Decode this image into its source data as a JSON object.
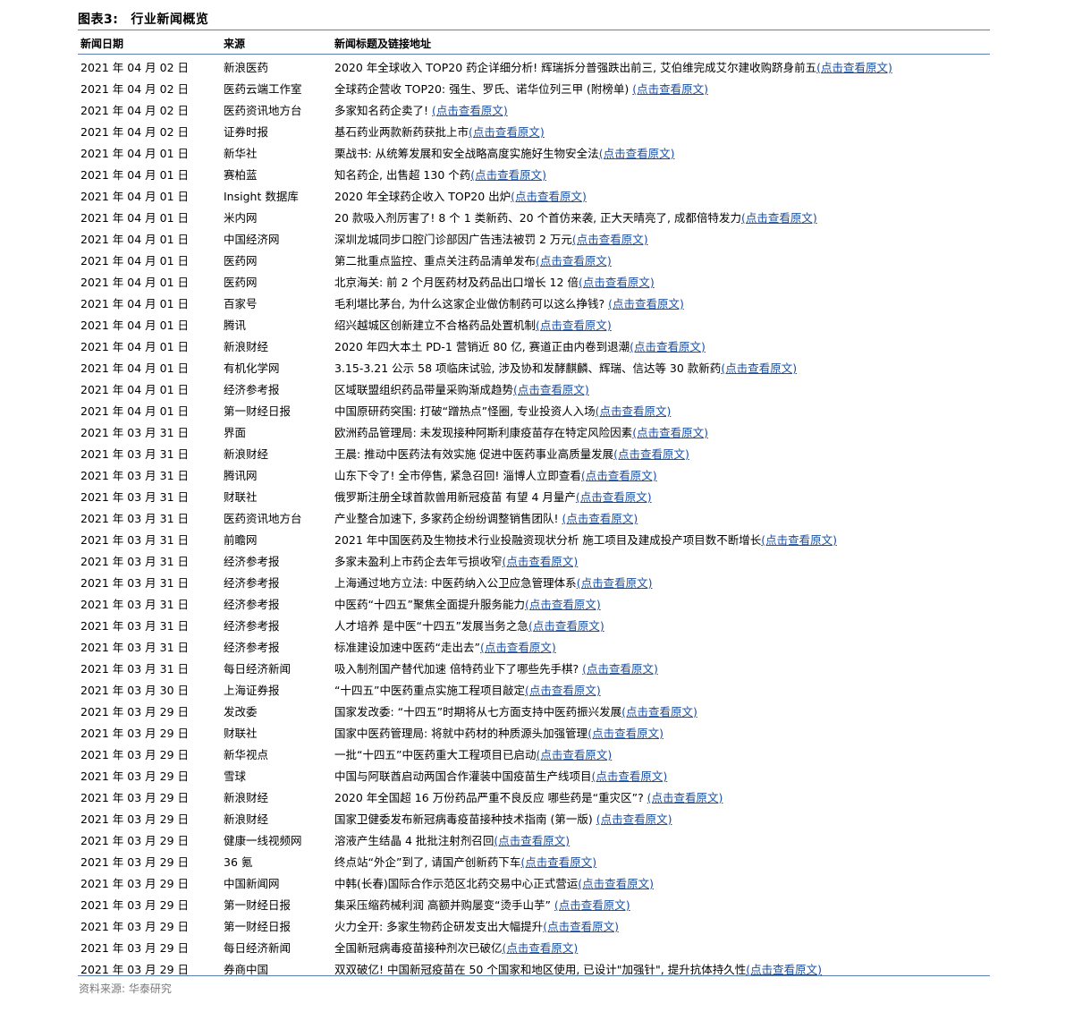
{
  "figure": {
    "label": "图表3:",
    "title": "行业新闻概览"
  },
  "columns": {
    "date": "新闻日期",
    "source": "来源",
    "title": "新闻标题及链接地址"
  },
  "link_text": "(点击查看原文)",
  "rows": [
    {
      "date": "2021 年 04 月 02 日",
      "source": "新浪医药",
      "title": "2020 年全球收入 TOP20 药企详细分析! 辉瑞拆分普强跌出前三, 艾伯维完成艾尔建收购跻身前五"
    },
    {
      "date": "2021 年 04 月 02 日",
      "source": "医药云端工作室",
      "title": "全球药企营收 TOP20: 强生、罗氏、诺华位列三甲 (附榜单) "
    },
    {
      "date": "2021 年 04 月 02 日",
      "source": "医药资讯地方台",
      "title": "多家知名药企卖了! "
    },
    {
      "date": "2021 年 04 月 02 日",
      "source": "证券时报",
      "title": "基石药业两款新药获批上市"
    },
    {
      "date": "2021 年 04 月 01 日",
      "source": "新华社",
      "title": "栗战书: 从统筹发展和安全战略高度实施好生物安全法"
    },
    {
      "date": "2021 年 04 月 01 日",
      "source": "赛柏蓝",
      "title": "知名药企, 出售超 130 个药"
    },
    {
      "date": "2021 年 04 月 01 日",
      "source": "Insight 数据库",
      "title": "2020 年全球药企收入 TOP20 出炉"
    },
    {
      "date": "2021 年 04 月 01 日",
      "source": "米内网",
      "title": "20 款吸入剂厉害了! 8 个 1 类新药、20 个首仿来袭, 正大天晴亮了, 成都倍特发力"
    },
    {
      "date": "2021 年 04 月 01 日",
      "source": "中国经济网",
      "title": "深圳龙城同步口腔门诊部因广告违法被罚 2 万元"
    },
    {
      "date": "2021 年 04 月 01 日",
      "source": "医药网",
      "title": "第二批重点监控、重点关注药品清单发布"
    },
    {
      "date": "2021 年 04 月 01 日",
      "source": "医药网",
      "title": "北京海关: 前 2 个月医药材及药品出口增长 12 倍"
    },
    {
      "date": "2021 年 04 月 01 日",
      "source": "百家号",
      "title": "毛利堪比茅台, 为什么这家企业做仿制药可以这么挣钱? "
    },
    {
      "date": "2021 年 04 月 01 日",
      "source": "腾讯",
      "title": "绍兴越城区创新建立不合格药品处置机制"
    },
    {
      "date": "2021 年 04 月 01 日",
      "source": "新浪财经",
      "title": "2020 年四大本土 PD-1 营销近 80 亿, 赛道正由内卷到退潮"
    },
    {
      "date": "2021 年 04 月 01 日",
      "source": "有机化学网",
      "title": "3.15-3.21 公示 58 项临床试验, 涉及协和发酵麒麟、辉瑞、信达等 30 款新药"
    },
    {
      "date": "2021 年 04 月 01 日",
      "source": "经济参考报",
      "title": "区域联盟组织药品带量采购渐成趋势"
    },
    {
      "date": "2021 年 04 月 01 日",
      "source": "第一财经日报",
      "title": "中国原研药突围: 打破“蹭热点”怪圈, 专业投资人入场"
    },
    {
      "date": "2021 年 03 月 31 日",
      "source": "界面",
      "title": "欧洲药品管理局: 未发现接种阿斯利康疫苗存在特定风险因素"
    },
    {
      "date": "2021 年 03 月 31 日",
      "source": "新浪财经",
      "title": "王晨: 推动中医药法有效实施 促进中医药事业高质量发展"
    },
    {
      "date": "2021 年 03 月 31 日",
      "source": "腾讯网",
      "title": "山东下令了! 全市停售, 紧急召回! 淄博人立即查看"
    },
    {
      "date": "2021 年 03 月 31 日",
      "source": "财联社",
      "title": "俄罗斯注册全球首款兽用新冠疫苗 有望 4 月量产"
    },
    {
      "date": "2021 年 03 月 31 日",
      "source": "医药资讯地方台",
      "title": "产业整合加速下, 多家药企纷纷调整销售团队! "
    },
    {
      "date": "2021 年 03 月 31 日",
      "source": "前瞻网",
      "title": "2021 年中国医药及生物技术行业投融资现状分析 施工项目及建成投产项目数不断增长"
    },
    {
      "date": "2021 年 03 月 31 日",
      "source": "经济参考报",
      "title": "多家未盈利上市药企去年亏损收窄"
    },
    {
      "date": "2021 年 03 月 31 日",
      "source": "经济参考报",
      "title": "上海通过地方立法: 中医药纳入公卫应急管理体系"
    },
    {
      "date": "2021 年 03 月 31 日",
      "source": "经济参考报",
      "title": "中医药“十四五”聚焦全面提升服务能力"
    },
    {
      "date": "2021 年 03 月 31 日",
      "source": "经济参考报",
      "title": "人才培养 是中医“十四五”发展当务之急"
    },
    {
      "date": "2021 年 03 月 31 日",
      "source": "经济参考报",
      "title": "标准建设加速中医药“走出去”"
    },
    {
      "date": "2021 年 03 月 31 日",
      "source": "每日经济新闻",
      "title": "吸入制剂国产替代加速 倍特药业下了哪些先手棋? "
    },
    {
      "date": "2021 年 03 月 30 日",
      "source": "上海证券报",
      "title": "“十四五”中医药重点实施工程项目敲定"
    },
    {
      "date": "2021 年 03 月 29 日",
      "source": "发改委",
      "title": "国家发改委: “十四五”时期将从七方面支持中医药振兴发展"
    },
    {
      "date": "2021 年 03 月 29 日",
      "source": "财联社",
      "title": "国家中医药管理局: 将就中药材的种质源头加强管理"
    },
    {
      "date": "2021 年 03 月 29 日",
      "source": "新华视点",
      "title": "一批“十四五”中医药重大工程项目已启动"
    },
    {
      "date": "2021 年 03 月 29 日",
      "source": "雪球",
      "title": "中国与阿联酋启动两国合作灌装中国疫苗生产线项目"
    },
    {
      "date": "2021 年 03 月 29 日",
      "source": "新浪财经",
      "title": "2020 年全国超 16 万份药品严重不良反应 哪些药是“重灾区”? "
    },
    {
      "date": "2021 年 03 月 29 日",
      "source": "新浪财经",
      "title": "国家卫健委发布新冠病毒疫苗接种技术指南 (第一版) "
    },
    {
      "date": "2021 年 03 月 29 日",
      "source": "健康一线视频网",
      "title": "溶液产生结晶 4 批批注射剂召回"
    },
    {
      "date": "2021 年 03 月 29 日",
      "source": "36 氪",
      "title": "终点站“外企”到了, 请国产创新药下车"
    },
    {
      "date": "2021 年 03 月 29 日",
      "source": "中国新闻网",
      "title": "中韩(长春)国际合作示范区北药交易中心正式营运"
    },
    {
      "date": "2021 年 03 月 29 日",
      "source": "第一财经日报",
      "title": "集采压缩药械利润 高额并购屡变“烫手山芋” "
    },
    {
      "date": "2021 年 03 月 29 日",
      "source": "第一财经日报",
      "title": "火力全开: 多家生物药企研发支出大幅提升"
    },
    {
      "date": "2021 年 03 月 29 日",
      "source": "每日经济新闻",
      "title": "全国新冠病毒疫苗接种剂次已破亿"
    },
    {
      "date": "2021 年 03 月 29 日",
      "source": "券商中国",
      "title": "双双破亿! 中国新冠疫苗在 50 个国家和地区使用, 已设计\"加强针\", 提升抗体持久性"
    }
  ],
  "footnote": "资料来源: 华泰研究"
}
